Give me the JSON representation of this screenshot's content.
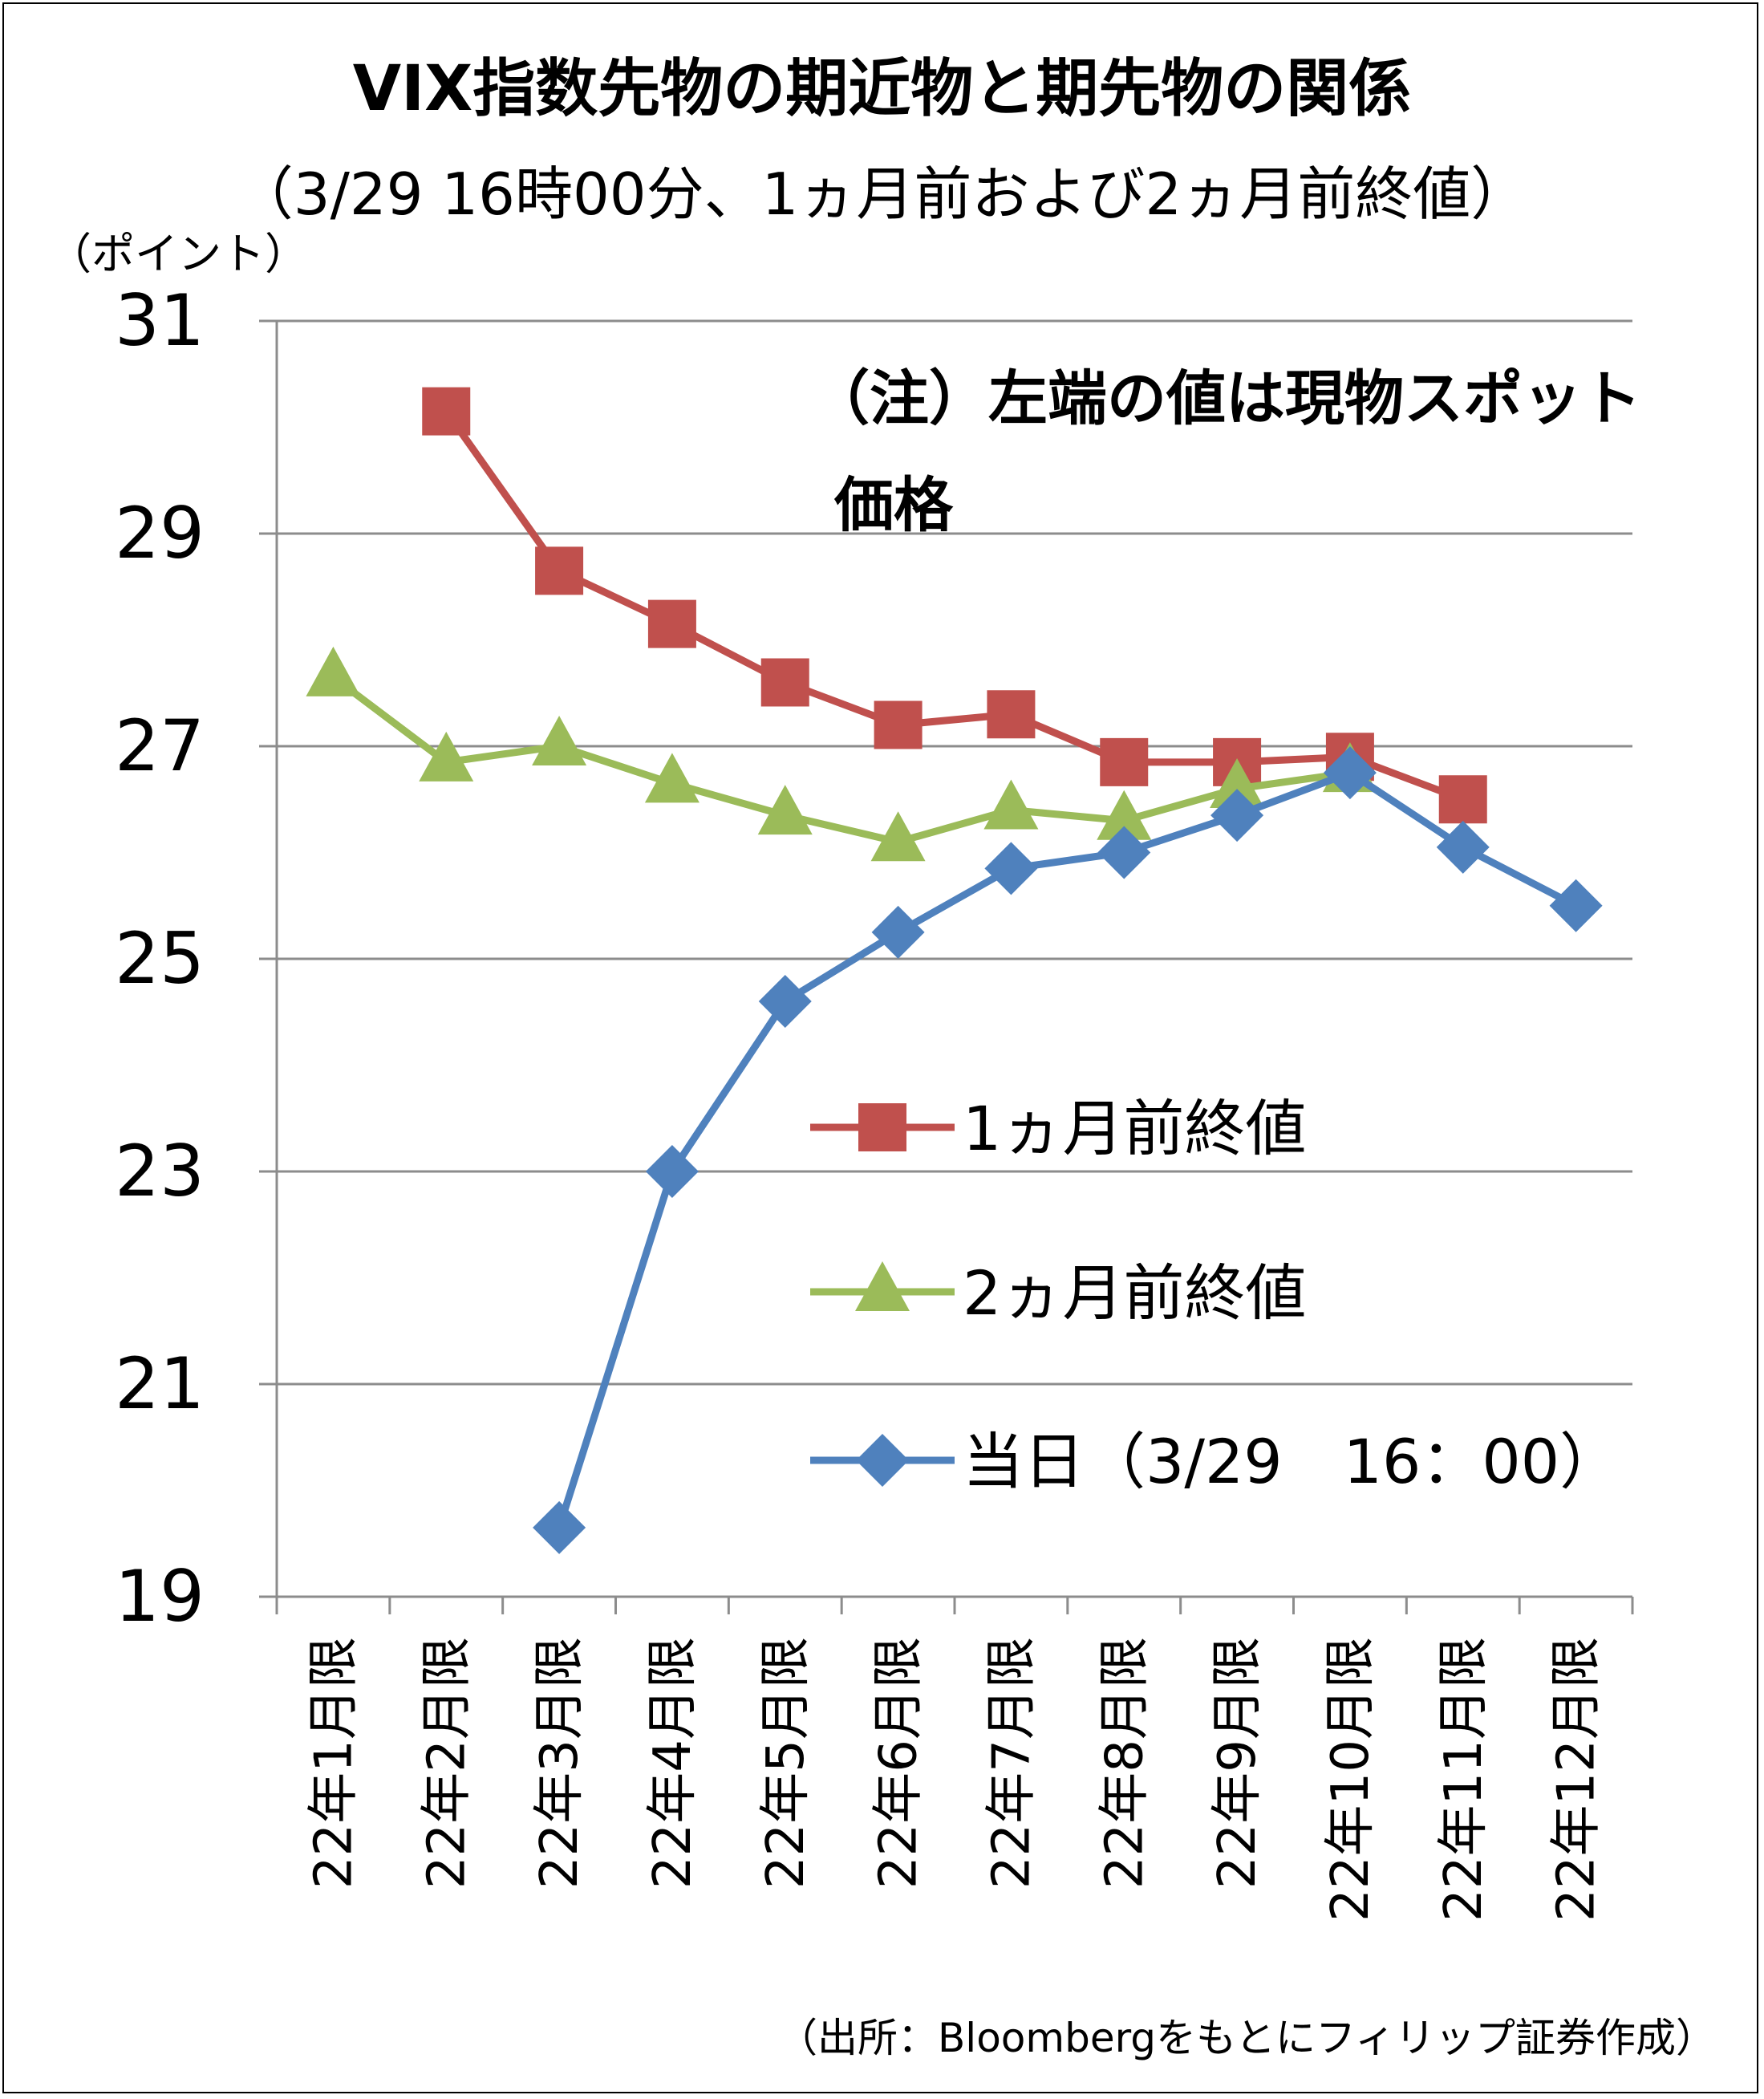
{
  "chart_data": {
    "type": "line",
    "title": "VIX指数先物の期近物と期先物の関係",
    "subtitle": "（3/29 16時00分、1ヵ月前および2ヵ月前終値）",
    "ylabel": "（ポイント）",
    "ylim": [
      19,
      31
    ],
    "yticks": [
      19,
      21,
      23,
      25,
      27,
      29,
      31
    ],
    "grid": true,
    "legend_position": "right",
    "note": "（注）左端の値は現物スポット価格",
    "source": "（出所：Bloombergをもとにフィリップ証券作成）",
    "categories": [
      "22年1月限",
      "22年2月限",
      "22年3月限",
      "22年4月限",
      "22年5月限",
      "22年6月限",
      "22年7月限",
      "22年8月限",
      "22年9月限",
      "22年10月限",
      "22年11月限",
      "22年12月限"
    ],
    "series": [
      {
        "name": "1ヵ月前終値",
        "color": "#c0504d",
        "marker": "square",
        "values": [
          null,
          30.15,
          28.65,
          28.15,
          27.6,
          27.2,
          27.3,
          26.85,
          26.85,
          26.9,
          26.5,
          null
        ]
      },
      {
        "name": "2ヵ月前終値",
        "color": "#9bbb59",
        "marker": "triangle",
        "values": [
          27.65,
          26.85,
          27.0,
          26.65,
          26.35,
          26.1,
          26.4,
          26.3,
          26.6,
          26.75,
          null,
          null
        ]
      },
      {
        "name": "当日（3/29　16：00）",
        "color": "#4f81bd",
        "marker": "diamond",
        "values": [
          null,
          null,
          19.65,
          23.0,
          24.6,
          25.25,
          25.85,
          26.0,
          26.35,
          26.75,
          26.05,
          25.5
        ]
      }
    ]
  }
}
